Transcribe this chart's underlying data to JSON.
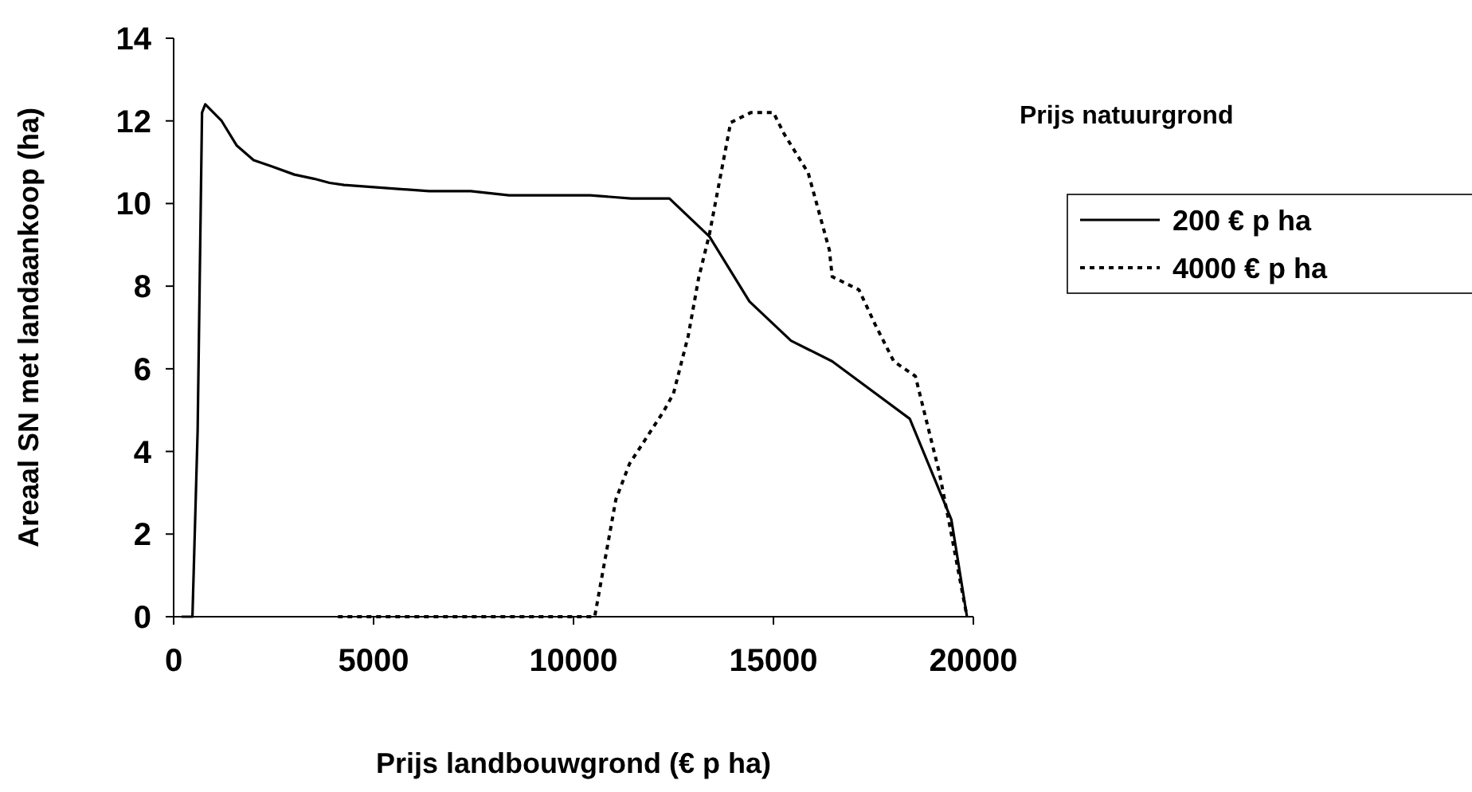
{
  "chart_data": {
    "type": "line",
    "xlabel": "Prijs landbouwgrond (€ p ha)",
    "ylabel": "Areaal SN met landaankoop (ha)",
    "legend_title": "Prijs natuurgrond",
    "legend": "right",
    "xlim": [
      0,
      20000
    ],
    "xticks": [
      0,
      5000,
      10000,
      15000,
      20000
    ],
    "ylim": [
      0,
      14
    ],
    "yticks": [
      0,
      2,
      4,
      6,
      8,
      10,
      12,
      14
    ],
    "grid": false,
    "series": [
      {
        "name": "200 € p ha",
        "color": "#000000",
        "line_style": "solid",
        "x": [
          200,
          470,
          600,
          650,
          710,
          790,
          1200,
          1580,
          2000,
          2450,
          3020,
          3510,
          3900,
          4260,
          6390,
          7430,
          8390,
          10420,
          11440,
          12400,
          13400,
          14400,
          15440,
          16470,
          18410,
          19450,
          19840
        ],
        "values": [
          0,
          0,
          4.5,
          8,
          12.2,
          12.4,
          12,
          11.4,
          11.05,
          10.9,
          10.7,
          10.6,
          10.5,
          10.45,
          10.3,
          10.3,
          10.2,
          10.2,
          10.12,
          10.12,
          9.2,
          7.63,
          6.68,
          6.18,
          4.79,
          2.35,
          0
        ]
      },
      {
        "name": "4000 € p ha",
        "color": "#000000",
        "line_style": "dotted",
        "x": [
          4110,
          10530,
          11060,
          11400,
          12260,
          12500,
          12870,
          13130,
          13400,
          13930,
          14430,
          15000,
          15270,
          15870,
          16400,
          16470,
          17140,
          17540,
          18010,
          18550,
          19150,
          19410,
          19840
        ],
        "values": [
          0,
          0,
          2.84,
          3.7,
          4.98,
          5.4,
          6.8,
          8.2,
          9.26,
          11.96,
          12.2,
          12.2,
          11.68,
          10.74,
          8.87,
          8.23,
          7.91,
          7.08,
          6.18,
          5.82,
          3.48,
          2.2,
          0
        ]
      }
    ]
  }
}
